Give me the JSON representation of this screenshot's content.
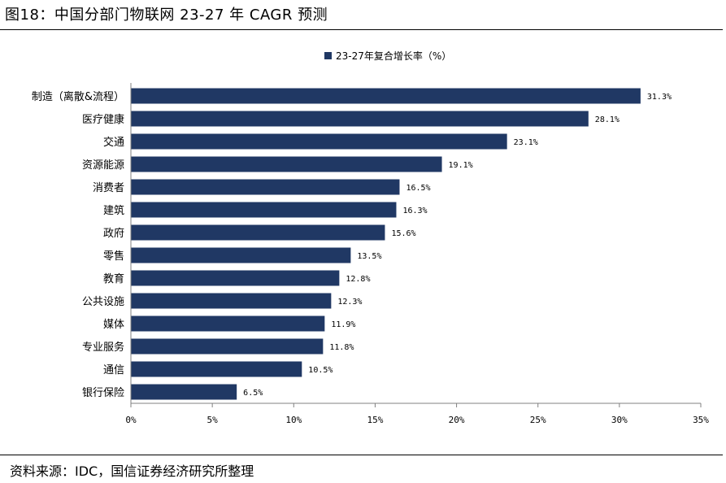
{
  "header": {
    "title": "图18：中国分部门物联网 23-27 年 CAGR 预测"
  },
  "footer": {
    "source": "资料来源：IDC，国信证券经济研究所整理"
  },
  "colors": {
    "bar": "#203864",
    "axis": "#808080"
  },
  "chart_data": {
    "type": "bar",
    "orientation": "horizontal",
    "title": "",
    "xlabel": "",
    "ylabel": "",
    "legend": {
      "label": "23-27年复合增长率（%）",
      "position": "top"
    },
    "categories": [
      "制造（离散&流程）",
      "医疗健康",
      "交通",
      "资源能源",
      "消费者",
      "建筑",
      "政府",
      "零售",
      "教育",
      "公共设施",
      "媒体",
      "专业服务",
      "通信",
      "银行保险"
    ],
    "series": [
      {
        "name": "23-27年复合增长率（%）",
        "values": [
          31.3,
          28.1,
          23.1,
          19.1,
          16.5,
          16.3,
          15.6,
          13.5,
          12.8,
          12.3,
          11.9,
          11.8,
          10.5,
          6.5
        ],
        "labels": [
          "31.3%",
          "28.1%",
          "23.1%",
          "19.1%",
          "16.5%",
          "16.3%",
          "15.6%",
          "13.5%",
          "12.8%",
          "12.3%",
          "11.9%",
          "11.8%",
          "10.5%",
          "6.5%"
        ]
      }
    ],
    "xlim": [
      0,
      35
    ],
    "xticks": [
      0,
      5,
      10,
      15,
      20,
      25,
      30,
      35
    ],
    "xtick_labels": [
      "0%",
      "5%",
      "10%",
      "15%",
      "20%",
      "25%",
      "30%",
      "35%"
    ],
    "grid": false
  }
}
